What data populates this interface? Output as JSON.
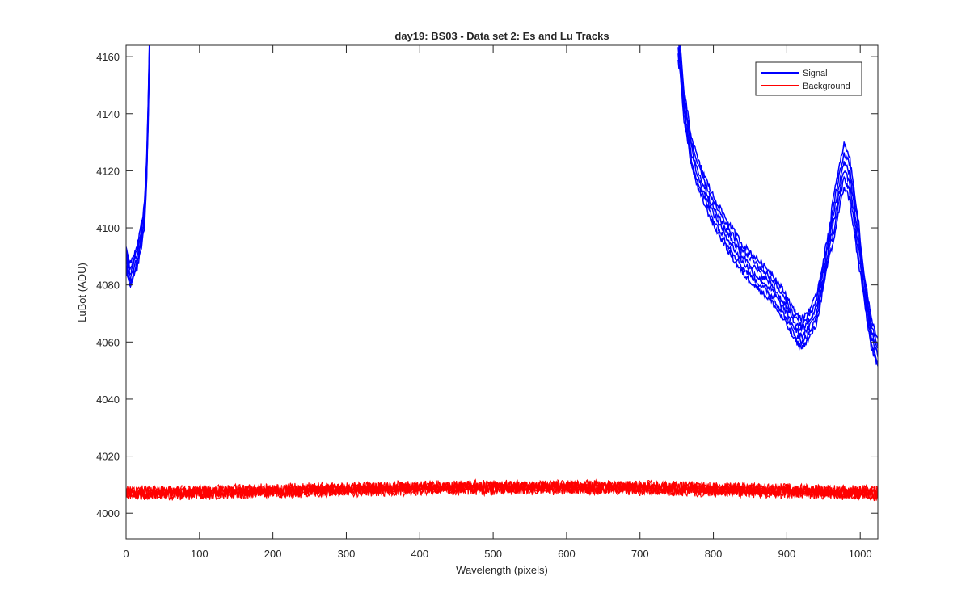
{
  "chart_data": {
    "type": "line",
    "title": "day19: BS03 - Data set 2: Es and Lu Tracks",
    "xlabel": "Wavelength (pixels)",
    "ylabel": "LuBot (ADU)",
    "xlim": [
      0,
      1024
    ],
    "ylim": [
      3991,
      4164
    ],
    "xticks": [
      0,
      100,
      200,
      300,
      400,
      500,
      600,
      700,
      800,
      900,
      1000
    ],
    "yticks": [
      4000,
      4020,
      4040,
      4060,
      4080,
      4100,
      4120,
      4140,
      4160
    ],
    "grid": false,
    "legend_position": "top-right",
    "series": [
      {
        "name": "Signal",
        "color": "#0000ff",
        "traces": 6,
        "segments": [
          {
            "x": [
              0,
              5,
              10,
              15,
              20,
              25,
              28,
              30,
              32
            ],
            "y": [
              4090,
              4083,
              4086,
              4090,
              4096,
              4104,
              4120,
              4140,
              4164
            ]
          },
          {
            "x": [
              752,
              755,
              760,
              770,
              780,
              800,
              820,
              840,
              860,
              880,
              900,
              910,
              920,
              930,
              940,
              950,
              960,
              970,
              978,
              985,
              995,
              1005,
              1015,
              1024
            ],
            "y": [
              4164,
              4158,
              4143,
              4127,
              4118,
              4106,
              4097,
              4089,
              4084,
              4079,
              4071,
              4066,
              4063,
              4066,
              4071,
              4084,
              4098,
              4112,
              4122,
              4118,
              4100,
              4080,
              4063,
              4056
            ]
          }
        ]
      },
      {
        "name": "Background",
        "color": "#ff0000",
        "traces": 6,
        "x": [
          0,
          100,
          200,
          300,
          400,
          500,
          600,
          700,
          800,
          900,
          1000,
          1024
        ],
        "y": [
          4007,
          4007.3,
          4007.8,
          4008.3,
          4008.8,
          4009,
          4009,
          4008.9,
          4008.4,
          4007.8,
          4007.2,
          4007
        ]
      }
    ]
  }
}
